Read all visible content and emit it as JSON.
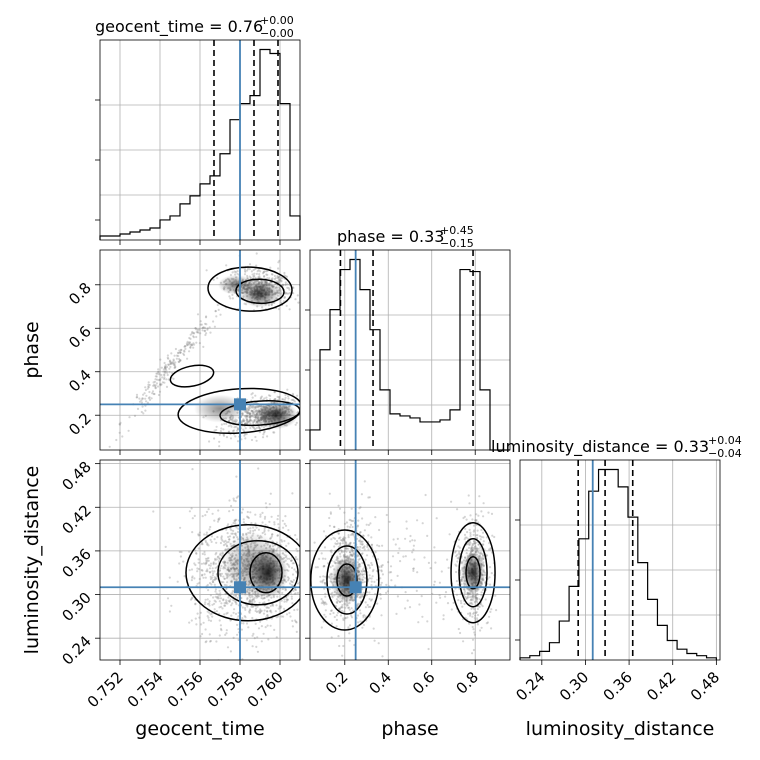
{
  "chart_data": {
    "type": "corner",
    "params": [
      "geocent_time",
      "phase",
      "luminosity_distance"
    ],
    "truths": {
      "geocent_time": 0.758,
      "phase": 0.25,
      "luminosity_distance": 0.31
    },
    "titles": [
      {
        "param": "geocent_time",
        "text": "geocent_time = 0.76",
        "sup": "+0.00",
        "sub": "−0.00"
      },
      {
        "param": "phase",
        "text": "phase = 0.33",
        "sup": "+0.45",
        "sub": "−0.15"
      },
      {
        "param": "luminosity_distance",
        "text": "luminosity_distance = 0.33",
        "sup": "+0.04",
        "sub": "−0.04"
      }
    ],
    "ranges": {
      "geocent_time": [
        0.751,
        0.761
      ],
      "phase": [
        0.04,
        0.96
      ],
      "luminosity_distance": [
        0.21,
        0.485
      ]
    },
    "ticks": {
      "geocent_time": [
        "0.752",
        "0.754",
        "0.756",
        "0.758",
        "0.760"
      ],
      "phase": [
        "0.2",
        "0.4",
        "0.6",
        "0.8"
      ],
      "luminosity_distance": [
        "0.24",
        "0.30",
        "0.36",
        "0.42",
        "0.48"
      ]
    },
    "quantiles": {
      "geocent_time": [
        0.7567,
        0.7587,
        0.7599
      ],
      "phase": [
        0.18,
        0.33,
        0.79
      ],
      "luminosity_distance": [
        0.29,
        0.327,
        0.365
      ]
    },
    "histograms": {
      "geocent_time": {
        "edges": [
          0.751,
          0.7515,
          0.752,
          0.7525,
          0.753,
          0.7535,
          0.754,
          0.7545,
          0.755,
          0.7555,
          0.756,
          0.7565,
          0.757,
          0.7575,
          0.758,
          0.7585,
          0.759,
          0.7595,
          0.76,
          0.7605,
          0.761
        ],
        "counts": [
          2,
          2,
          3,
          4,
          5,
          6,
          10,
          12,
          18,
          22,
          28,
          32,
          43,
          60,
          68,
          72,
          95,
          93,
          68,
          12
        ]
      },
      "phase": {
        "edges": [
          0.04,
          0.086,
          0.132,
          0.178,
          0.224,
          0.27,
          0.316,
          0.362,
          0.408,
          0.454,
          0.5,
          0.546,
          0.592,
          0.638,
          0.684,
          0.73,
          0.776,
          0.822,
          0.868,
          0.914,
          0.96
        ],
        "counts": [
          10,
          50,
          70,
          90,
          95,
          80,
          60,
          30,
          18,
          17,
          16,
          14,
          14,
          15,
          20,
          90,
          89,
          30,
          0,
          0
        ]
      },
      "luminosity_distance": {
        "edges": [
          0.21,
          0.2235,
          0.237,
          0.2505,
          0.264,
          0.2775,
          0.291,
          0.3045,
          0.318,
          0.3315,
          0.345,
          0.3585,
          0.372,
          0.3855,
          0.399,
          0.4125,
          0.426,
          0.4395,
          0.453,
          0.4665,
          0.48
        ],
        "counts": [
          1,
          2,
          4,
          8,
          18,
          34,
          56,
          78,
          88,
          88,
          80,
          66,
          45,
          28,
          16,
          9,
          5,
          3,
          2,
          1
        ]
      }
    },
    "grid": true
  }
}
